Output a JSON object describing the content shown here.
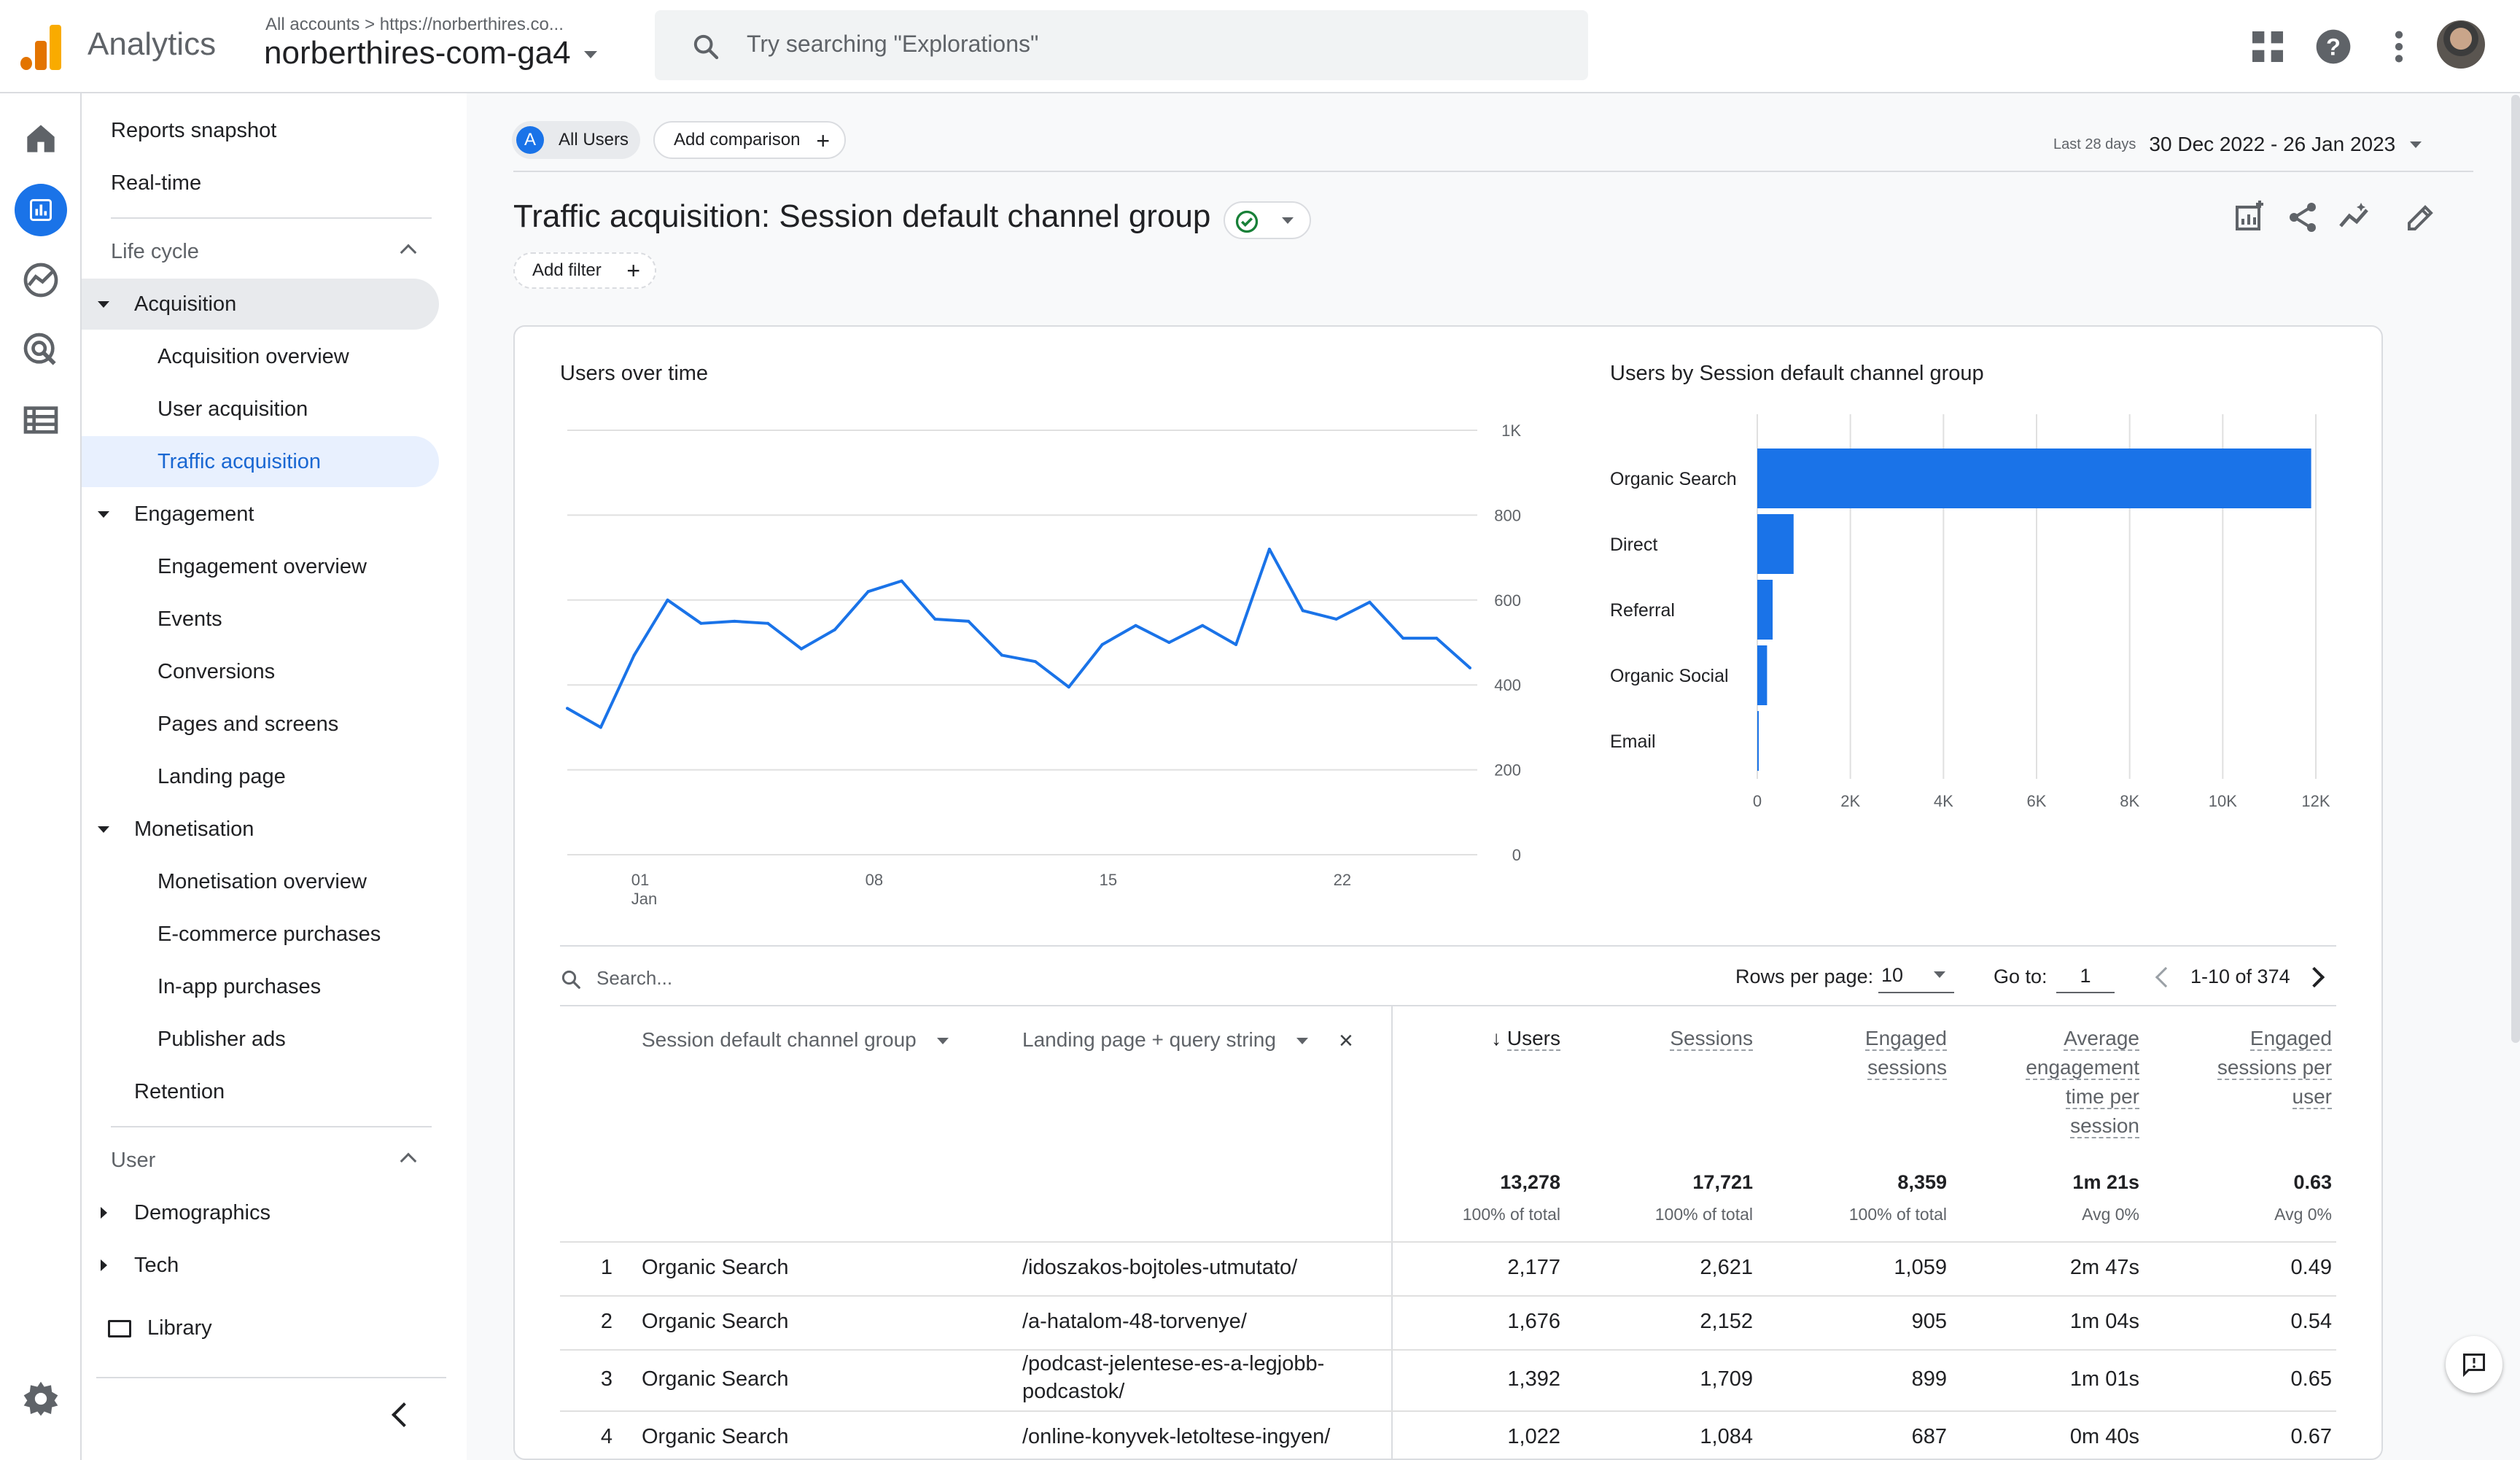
{
  "header": {
    "app_name": "Analytics",
    "breadcrumb": "All accounts > https://norberthires.co...",
    "property": "norberthires-com-ga4",
    "search_placeholder": "Try searching \"Explorations\""
  },
  "nav": {
    "top": [
      "Reports snapshot",
      "Real-time"
    ],
    "lifecycle_label": "Life cycle",
    "acquisition": {
      "label": "Acquisition",
      "items": [
        "Acquisition overview",
        "User acquisition",
        "Traffic acquisition"
      ]
    },
    "engagement": {
      "label": "Engagement",
      "items": [
        "Engagement overview",
        "Events",
        "Conversions",
        "Pages and screens",
        "Landing page"
      ]
    },
    "monetisation": {
      "label": "Monetisation",
      "items": [
        "Monetisation overview",
        "E-commerce purchases",
        "In-app purchases",
        "Publisher ads"
      ]
    },
    "retention": "Retention",
    "user_label": "User",
    "user_items": [
      "Demographics",
      "Tech"
    ],
    "library": "Library"
  },
  "toolbar": {
    "segment_letter": "A",
    "segment": "All Users",
    "add_comparison": "Add comparison",
    "date_prefix": "Last 28 days",
    "date_range": "30 Dec 2022 - 26 Jan 2023"
  },
  "report": {
    "title": "Traffic acquisition: Session default channel group",
    "add_filter": "Add filter"
  },
  "line_chart_title": "Users over time",
  "bar_chart_title": "Users by Session default channel group",
  "chart_data": [
    {
      "type": "line",
      "title": "Users over time",
      "x": [
        "30 Dec",
        "31 Dec",
        "01 Jan",
        "02 Jan",
        "03 Jan",
        "04 Jan",
        "05 Jan",
        "06 Jan",
        "07 Jan",
        "08 Jan",
        "09 Jan",
        "10 Jan",
        "11 Jan",
        "12 Jan",
        "13 Jan",
        "14 Jan",
        "15 Jan",
        "16 Jan",
        "17 Jan",
        "18 Jan",
        "19 Jan",
        "20 Jan",
        "21 Jan",
        "22 Jan",
        "23 Jan",
        "24 Jan",
        "25 Jan",
        "26 Jan"
      ],
      "series": [
        {
          "values": [
            345,
            300,
            470,
            600,
            545,
            550,
            545,
            485,
            530,
            620,
            645,
            555,
            550,
            470,
            455,
            395,
            495,
            540,
            500,
            540,
            495,
            720,
            575,
            555,
            595,
            510,
            510,
            440
          ]
        }
      ],
      "x_ticks": [
        "01\nJan",
        "08",
        "15",
        "22"
      ],
      "y_ticks": [
        "0",
        "200",
        "400",
        "600",
        "800",
        "1K"
      ],
      "ylim": [
        0,
        1000
      ],
      "color": "#1a73e8",
      "grid": true
    },
    {
      "type": "bar",
      "orientation": "horizontal",
      "title": "Users by Session default channel group",
      "categories": [
        "Organic Search",
        "Direct",
        "Referral",
        "Organic Social",
        "Email"
      ],
      "values": [
        11900,
        780,
        330,
        210,
        30
      ],
      "x_ticks": [
        "0",
        "2K",
        "4K",
        "6K",
        "8K",
        "10K",
        "12K"
      ],
      "xlim": [
        0,
        12000
      ],
      "color": "#1a73e8",
      "grid": true
    }
  ],
  "table": {
    "search_placeholder": "Search...",
    "rows_per_page_label": "Rows per page:",
    "rows_per_page": "10",
    "goto_label": "Go to:",
    "goto_value": "1",
    "range": "1-10 of 374",
    "dim1": "Session default channel group",
    "dim2": "Landing page + query string",
    "metrics": [
      {
        "lines": [
          "Users"
        ],
        "total": "13,278",
        "sub": "100% of total"
      },
      {
        "lines": [
          "Sessions"
        ],
        "total": "17,721",
        "sub": "100% of total"
      },
      {
        "lines": [
          "Engaged",
          "sessions"
        ],
        "total": "8,359",
        "sub": "100% of total"
      },
      {
        "lines": [
          "Average",
          "engagement",
          "time per",
          "session"
        ],
        "total": "1m 21s",
        "sub": "Avg 0%"
      },
      {
        "lines": [
          "Engaged",
          "sessions per",
          "user"
        ],
        "total": "0.63",
        "sub": "Avg 0%"
      }
    ],
    "rows": [
      {
        "n": "1",
        "channel": "Organic Search",
        "page": "/idoszakos-bojtoles-utmutato/",
        "page2": "",
        "users": "2,177",
        "sessions": "2,621",
        "engaged": "1,059",
        "avg": "2m 47s",
        "per_user": "0.49"
      },
      {
        "n": "2",
        "channel": "Organic Search",
        "page": "/a-hatalom-48-torvenye/",
        "page2": "",
        "users": "1,676",
        "sessions": "2,152",
        "engaged": "905",
        "avg": "1m 04s",
        "per_user": "0.54"
      },
      {
        "n": "3",
        "channel": "Organic Search",
        "page": "/podcast-jelentese-es-a-legjobb-",
        "page2": "podcastok/",
        "users": "1,392",
        "sessions": "1,709",
        "engaged": "899",
        "avg": "1m 01s",
        "per_user": "0.65"
      },
      {
        "n": "4",
        "channel": "Organic Search",
        "page": "/online-konyvek-letoltese-ingyen/",
        "page2": "",
        "users": "1,022",
        "sessions": "1,084",
        "engaged": "687",
        "avg": "0m 40s",
        "per_user": "0.67"
      }
    ]
  },
  "colors": {
    "accent": "#1a73e8",
    "selected_bg": "#e8f0fe",
    "orange": "#f9ab00",
    "orange_dark": "#e37400"
  }
}
